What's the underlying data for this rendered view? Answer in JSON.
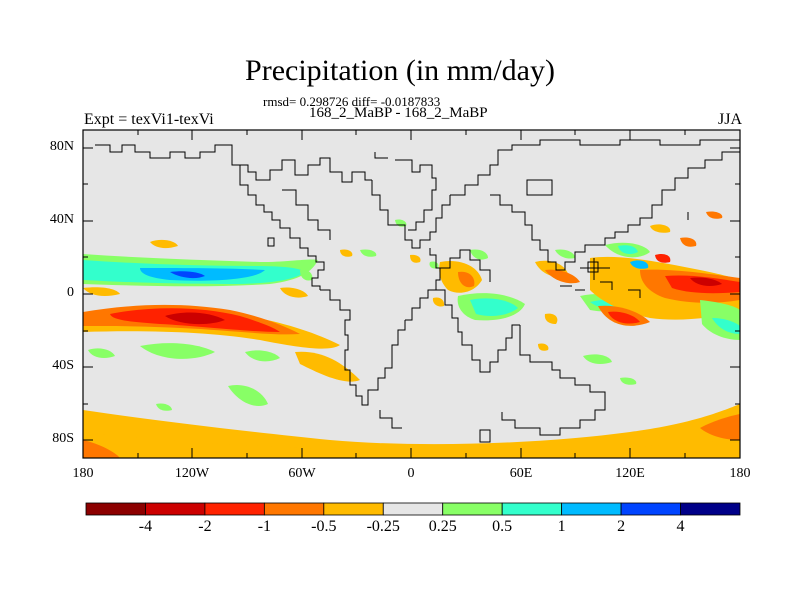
{
  "header": {
    "title": "Precipitation (in mm/day)",
    "stats": "rmsd= 0.298726 diff= -0.0187833",
    "subtitle": "168_2_MaBP - 168_2_MaBP",
    "left_label": "Expt = texVi1-texVi",
    "right_label": "JJA"
  },
  "axes": {
    "lat_labels": [
      "80N",
      "40N",
      "0",
      "40S",
      "80S"
    ],
    "lon_labels": [
      "180",
      "120W",
      "60W",
      "0",
      "60E",
      "120E",
      "180"
    ]
  },
  "colorbar": {
    "boxes": [
      "#8c0000",
      "#cc0000",
      "#ff2200",
      "#ff7700",
      "#ffbb00",
      "#e6e6e6",
      "#88ff66",
      "#33ffcc",
      "#00bbff",
      "#0044ff",
      "#000088"
    ],
    "labels": [
      "-4",
      "-2",
      "-1",
      "-0.5",
      "-0.25",
      "0.25",
      "0.5",
      "1",
      "2",
      "4"
    ]
  },
  "colors": {
    "background": "#e6e6e6",
    "coast": "#000000"
  }
}
